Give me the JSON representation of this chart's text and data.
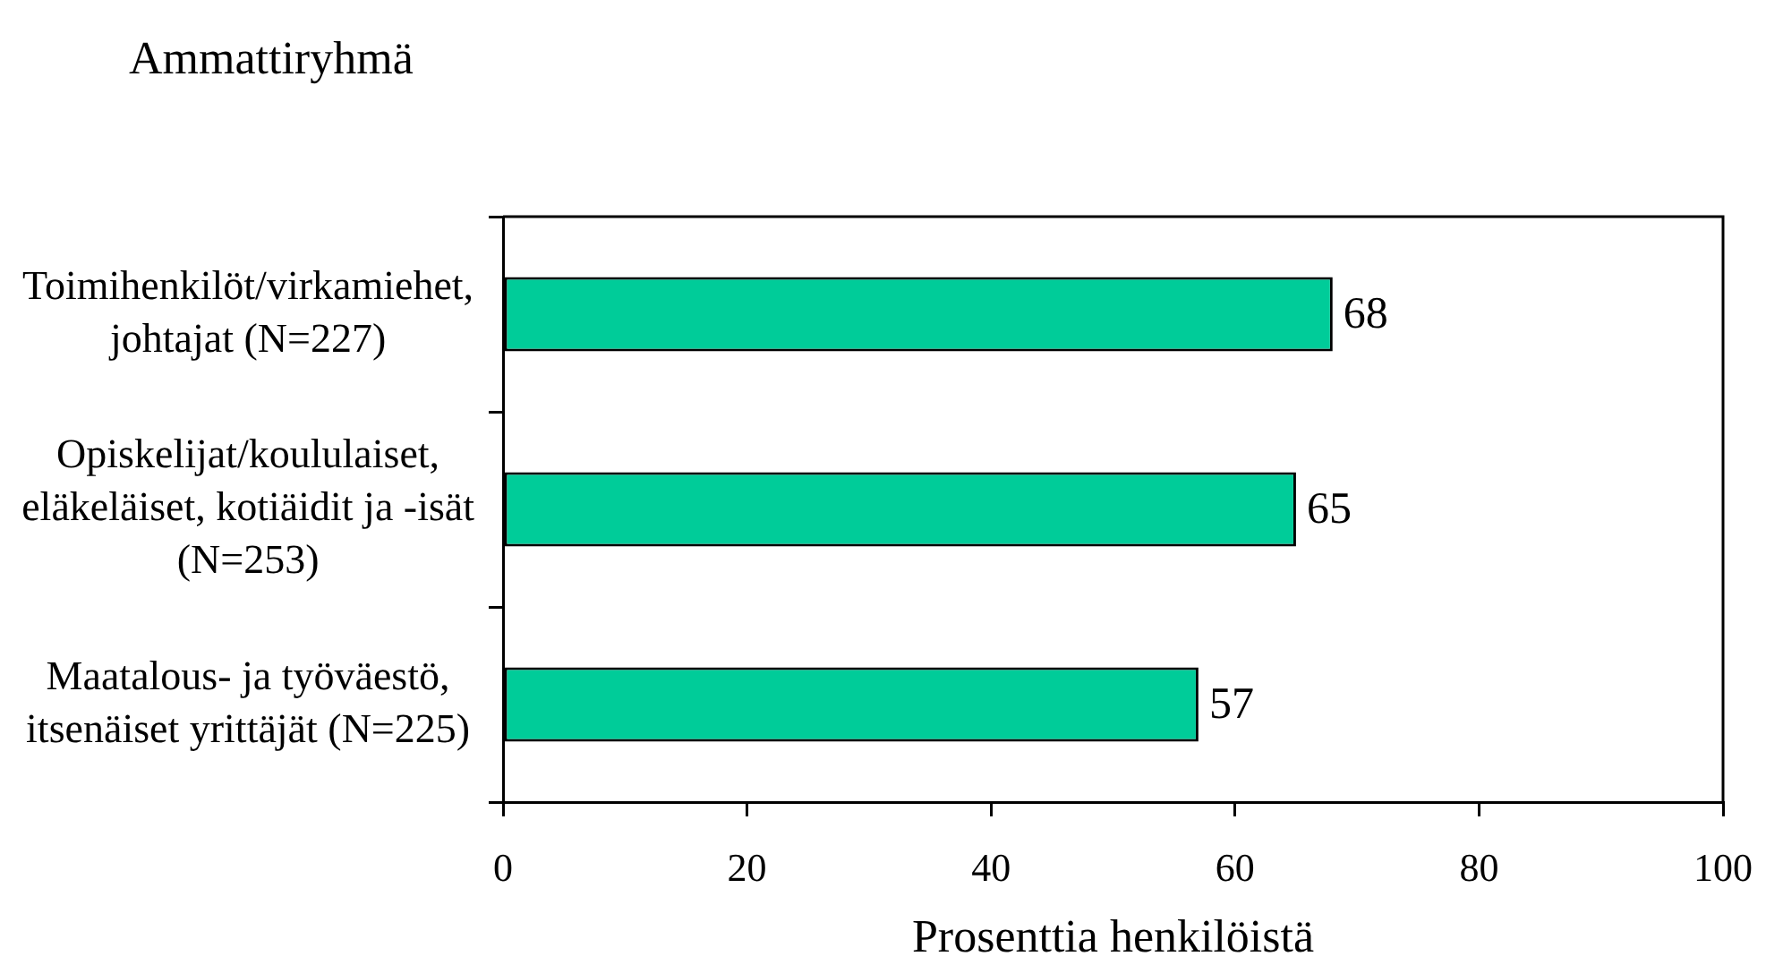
{
  "chart_data": {
    "type": "bar",
    "orientation": "horizontal",
    "ylabel": "Ammattiryhmä",
    "xlabel": "Prosenttia henkilöistä",
    "categories": [
      "Toimihenkilöt/virkamiehet, johtajat (N=227)",
      "Opiskelijat/koululaiset, eläkeläiset, kotiäidit ja -isät (N=253)",
      "Maatalous- ja työväestö, itsenäiset yrittäjät (N=225)"
    ],
    "values": [
      68,
      65,
      57
    ],
    "color": "#00cc99",
    "xlim": [
      0,
      100
    ],
    "xticks": [
      0,
      20,
      40,
      60,
      80,
      100
    ],
    "data_labels": true,
    "grid": false,
    "legend": false
  }
}
